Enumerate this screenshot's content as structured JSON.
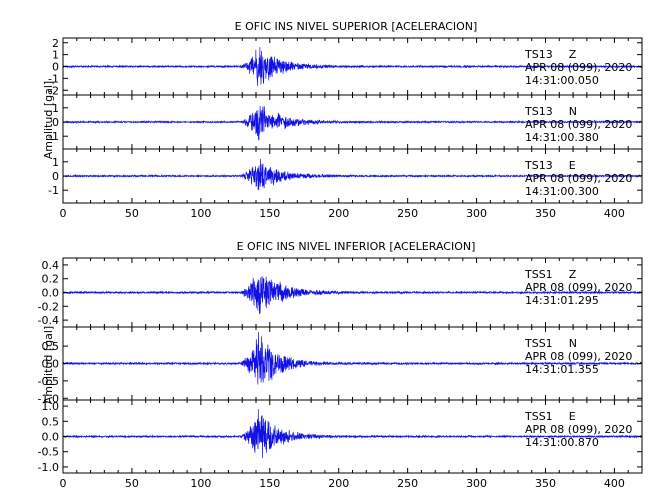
{
  "trace_color": "#1010e8",
  "chart_data": [
    {
      "type": "line",
      "title": "E OFIC INS NIVEL SUPERIOR [ACELERACION]",
      "ylabel": "Amplitud [gal]",
      "xlim": [
        0,
        420
      ],
      "x_ticks": [
        0,
        50,
        100,
        150,
        200,
        250,
        300,
        350,
        400
      ],
      "panels": [
        {
          "station": "TS13",
          "component": "Z",
          "date": "APR 08 (099), 2020",
          "time": "14:31:00.050",
          "ylim": [
            -2.4,
            2.4
          ],
          "y_ticks": [
            2,
            1,
            0,
            -1,
            -2
          ],
          "y_tick_labels": [
            "2",
            "1",
            "0",
            "-1",
            "-2"
          ],
          "onset": 128,
          "peak_time": 141,
          "peak_amplitude": 2.2,
          "noise": 0.08,
          "decay": 14,
          "seed": 11
        },
        {
          "station": "TS13",
          "component": "N",
          "date": "APR 08 (099), 2020",
          "time": "14:31:00.380",
          "ylim": [
            -1.9,
            1.9
          ],
          "y_ticks": [
            1,
            0,
            -1
          ],
          "y_tick_labels": [
            "1",
            "0",
            "-1"
          ],
          "onset": 128,
          "peak_time": 141,
          "peak_amplitude": 1.6,
          "noise": 0.06,
          "decay": 16,
          "seed": 23
        },
        {
          "station": "TS13",
          "component": "E",
          "date": "APR 08 (099), 2020",
          "time": "14:31:00.300",
          "ylim": [
            -1.9,
            1.9
          ],
          "y_ticks": [
            1,
            0,
            -1
          ],
          "y_tick_labels": [
            "1",
            "0",
            "-1"
          ],
          "onset": 128,
          "peak_time": 141,
          "peak_amplitude": 1.5,
          "noise": 0.06,
          "decay": 15,
          "seed": 37
        }
      ]
    },
    {
      "type": "line",
      "title": "E OFIC INS NIVEL INFERIOR [ACELERACION]",
      "ylabel": "Amplitud [gal]",
      "xlim": [
        0,
        420
      ],
      "x_ticks": [
        0,
        50,
        100,
        150,
        200,
        250,
        300,
        350,
        400
      ],
      "panels": [
        {
          "station": "TSS1",
          "component": "Z",
          "date": "APR 08 (099), 2020",
          "time": "14:31:01.295",
          "ylim": [
            -0.5,
            0.5
          ],
          "y_ticks": [
            0.4,
            0.2,
            0.0,
            -0.2,
            -0.4
          ],
          "y_tick_labels": [
            "0.4",
            "0.2",
            "0.0",
            "-0.2",
            "-0.4"
          ],
          "onset": 128,
          "peak_time": 141,
          "peak_amplitude": 0.45,
          "noise": 0.015,
          "decay": 15,
          "seed": 53
        },
        {
          "station": "TSS1",
          "component": "N",
          "date": "APR 08 (099), 2020",
          "time": "14:31:01.355",
          "ylim": [
            -1.05,
            1.05
          ],
          "y_ticks": [
            0.5,
            0.0,
            -0.5,
            -1.0
          ],
          "y_tick_labels": [
            "0.5",
            "0.0",
            "-0.5",
            "-1.0"
          ],
          "onset": 128,
          "peak_time": 141,
          "peak_amplitude": 1.0,
          "noise": 0.03,
          "decay": 14,
          "seed": 71
        },
        {
          "station": "TSS1",
          "component": "E",
          "date": "APR 08 (099), 2020",
          "time": "14:31:00.870",
          "ylim": [
            -1.2,
            1.2
          ],
          "y_ticks": [
            1.0,
            0.5,
            0.0,
            -0.5,
            -1.0
          ],
          "y_tick_labels": [
            "1.0",
            "0.5",
            "0.0",
            "-0.5",
            "-1.0"
          ],
          "onset": 128,
          "peak_time": 141,
          "peak_amplitude": 1.0,
          "noise": 0.03,
          "decay": 14,
          "seed": 89
        }
      ]
    }
  ]
}
